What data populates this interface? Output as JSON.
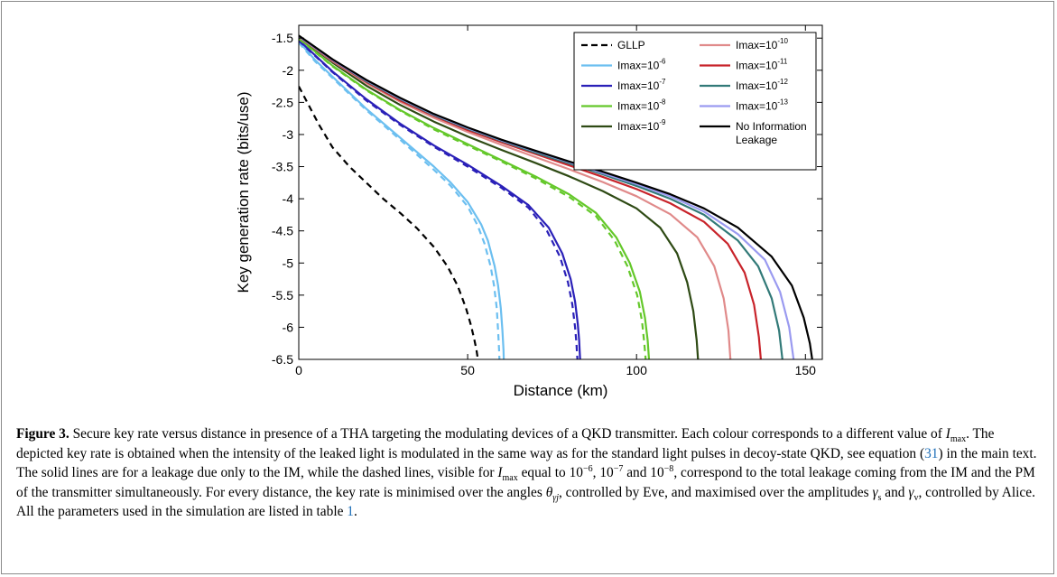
{
  "chart_data": {
    "type": "line",
    "xlabel": "Distance (km)",
    "ylabel": "Key generation rate (bits/use)",
    "xlim": [
      0,
      155
    ],
    "ylim": [
      -6.5,
      -1.3
    ],
    "xticks": [
      0,
      50,
      100,
      150
    ],
    "yticks": [
      -1.5,
      -2,
      -2.5,
      -3,
      -3.5,
      -4,
      -4.5,
      -5,
      -5.5,
      -6,
      -6.5
    ],
    "grid": false,
    "legend_position": "top-right",
    "legend_columns": 2,
    "series": [
      {
        "name": "GLLP",
        "legend_base": "GLLP",
        "legend_exp": "",
        "color": "#000000",
        "dash": true,
        "x": [
          0,
          3,
          6,
          10,
          15,
          20,
          25,
          30,
          35,
          40,
          44,
          47,
          49.5,
          51,
          52,
          52.6,
          52.9,
          53,
          53
        ],
        "y": [
          -2.25,
          -2.55,
          -2.85,
          -3.2,
          -3.5,
          -3.75,
          -4.0,
          -4.22,
          -4.46,
          -4.75,
          -5.05,
          -5.35,
          -5.7,
          -5.97,
          -6.2,
          -6.35,
          -6.45,
          -6.5,
          -6.5
        ]
      },
      {
        "name": "Imax=10-6",
        "legend_base": "Imax=10",
        "legend_exp": "-6",
        "color": "#6cbff0",
        "dash": false,
        "x": [
          0,
          5,
          10,
          20,
          30,
          40,
          45,
          50,
          54,
          56,
          58,
          59,
          59.8,
          60.3,
          60.6,
          60.7
        ],
        "y": [
          -1.55,
          -1.85,
          -2.1,
          -2.6,
          -3.05,
          -3.5,
          -3.75,
          -4.05,
          -4.4,
          -4.65,
          -5.05,
          -5.35,
          -5.7,
          -6.05,
          -6.35,
          -6.5
        ]
      },
      {
        "name": "Imax=10-6 (IM+PM)",
        "color": "#6cbff0",
        "dash": true,
        "x": [
          0,
          5,
          10,
          20,
          30,
          40,
          45,
          50,
          53,
          55,
          56.8,
          57.8,
          58.6,
          59.0,
          59.3,
          59.4
        ],
        "y": [
          -1.57,
          -1.87,
          -2.12,
          -2.62,
          -3.08,
          -3.55,
          -3.8,
          -4.12,
          -4.42,
          -4.7,
          -5.05,
          -5.35,
          -5.7,
          -6.05,
          -6.35,
          -6.5
        ]
      },
      {
        "name": "Imax=10-7",
        "legend_base": "Imax=10",
        "legend_exp": "-7",
        "color": "#2a20b8",
        "dash": false,
        "x": [
          0,
          10,
          20,
          30,
          40,
          50,
          60,
          68,
          74,
          78,
          80.5,
          81.8,
          82.6,
          83.0,
          83.2,
          83.3
        ],
        "y": [
          -1.53,
          -2.02,
          -2.45,
          -2.83,
          -3.17,
          -3.47,
          -3.8,
          -4.1,
          -4.45,
          -4.85,
          -5.25,
          -5.6,
          -5.95,
          -6.2,
          -6.4,
          -6.5
        ]
      },
      {
        "name": "Imax=10-7 (IM+PM)",
        "color": "#2a20b8",
        "dash": true,
        "x": [
          0,
          10,
          20,
          30,
          40,
          50,
          60,
          68,
          73.5,
          77.3,
          79.7,
          81.0,
          81.8,
          82.2,
          82.4,
          82.5
        ],
        "y": [
          -1.54,
          -2.03,
          -2.47,
          -2.85,
          -3.19,
          -3.5,
          -3.83,
          -4.14,
          -4.5,
          -4.9,
          -5.3,
          -5.65,
          -6.0,
          -6.25,
          -6.42,
          -6.5
        ]
      },
      {
        "name": "Imax=10-8",
        "legend_base": "Imax=10",
        "legend_exp": "-8",
        "color": "#64c82a",
        "dash": false,
        "x": [
          0,
          10,
          20,
          30,
          40,
          50,
          60,
          70,
          80,
          88,
          94,
          98,
          101,
          102.5,
          103.3,
          103.7
        ],
        "y": [
          -1.5,
          -1.93,
          -2.3,
          -2.62,
          -2.9,
          -3.15,
          -3.4,
          -3.65,
          -3.93,
          -4.22,
          -4.6,
          -5.0,
          -5.45,
          -5.85,
          -6.2,
          -6.5
        ]
      },
      {
        "name": "Imax=10-8 (IM+PM)",
        "color": "#64c82a",
        "dash": true,
        "x": [
          0,
          10,
          20,
          30,
          40,
          50,
          60,
          70,
          80,
          88,
          93.5,
          97.3,
          100.2,
          101.6,
          102.3,
          102.7
        ],
        "y": [
          -1.51,
          -1.94,
          -2.31,
          -2.63,
          -2.92,
          -3.17,
          -3.42,
          -3.68,
          -3.97,
          -4.27,
          -4.65,
          -5.05,
          -5.5,
          -5.9,
          -6.25,
          -6.5
        ]
      },
      {
        "name": "Imax=10-9",
        "legend_base": "Imax=10",
        "legend_exp": "-9",
        "color": "#2e4a14",
        "dash": false,
        "x": [
          0,
          10,
          20,
          30,
          40,
          50,
          60,
          70,
          80,
          90,
          100,
          107,
          112,
          115,
          116.8,
          117.8,
          118.2
        ],
        "y": [
          -1.48,
          -1.88,
          -2.24,
          -2.54,
          -2.8,
          -3.03,
          -3.24,
          -3.44,
          -3.65,
          -3.88,
          -4.15,
          -4.45,
          -4.85,
          -5.3,
          -5.75,
          -6.2,
          -6.5
        ]
      },
      {
        "name": "Imax=10-10",
        "legend_base": "Imax=10",
        "legend_exp": "-10",
        "color": "#e08a8a",
        "dash": false,
        "x": [
          0,
          10,
          20,
          30,
          40,
          50,
          60,
          70,
          80,
          90,
          100,
          110,
          118,
          123,
          125.8,
          127.2,
          127.8
        ],
        "y": [
          -1.48,
          -1.86,
          -2.2,
          -2.49,
          -2.74,
          -2.96,
          -3.16,
          -3.35,
          -3.54,
          -3.74,
          -3.96,
          -4.24,
          -4.6,
          -5.05,
          -5.55,
          -6.05,
          -6.5
        ]
      },
      {
        "name": "Imax=10-11",
        "legend_base": "Imax=10",
        "legend_exp": "-11",
        "color": "#c8232a",
        "dash": false,
        "x": [
          0,
          10,
          20,
          30,
          40,
          50,
          60,
          70,
          80,
          90,
          100,
          110,
          120,
          127,
          132,
          134.8,
          136.2,
          136.8
        ],
        "y": [
          -1.47,
          -1.85,
          -2.18,
          -2.47,
          -2.71,
          -2.93,
          -3.12,
          -3.3,
          -3.48,
          -3.66,
          -3.85,
          -4.07,
          -4.36,
          -4.7,
          -5.15,
          -5.65,
          -6.15,
          -6.5
        ]
      },
      {
        "name": "Imax=10-12",
        "legend_base": "Imax=10",
        "legend_exp": "-12",
        "color": "#327a78",
        "dash": false,
        "x": [
          0,
          10,
          20,
          30,
          40,
          50,
          60,
          70,
          80,
          90,
          100,
          110,
          120,
          130,
          136,
          140,
          142.2,
          143.2
        ],
        "y": [
          -1.47,
          -1.84,
          -2.17,
          -2.45,
          -2.7,
          -2.91,
          -3.1,
          -3.28,
          -3.45,
          -3.62,
          -3.8,
          -4.0,
          -4.25,
          -4.65,
          -5.05,
          -5.55,
          -6.05,
          -6.5
        ]
      },
      {
        "name": "Imax=10-13",
        "legend_base": "Imax=10",
        "legend_exp": "-13",
        "color": "#9a9af0",
        "dash": false,
        "x": [
          0,
          10,
          20,
          30,
          40,
          50,
          60,
          70,
          80,
          90,
          100,
          110,
          120,
          130,
          138,
          142.5,
          145.2,
          146.5
        ],
        "y": [
          -1.47,
          -1.84,
          -2.16,
          -2.44,
          -2.69,
          -2.9,
          -3.09,
          -3.26,
          -3.43,
          -3.6,
          -3.77,
          -3.96,
          -4.2,
          -4.55,
          -4.95,
          -5.45,
          -6.0,
          -6.5
        ]
      },
      {
        "name": "No Information Leakage",
        "legend_base": "No Information",
        "legend_line2": "Leakage",
        "legend_exp": "",
        "color": "#000000",
        "dash": false,
        "x": [
          0,
          10,
          20,
          30,
          40,
          50,
          60,
          70,
          80,
          90,
          100,
          110,
          120,
          130,
          140,
          146,
          149.5,
          151.3,
          152
        ],
        "y": [
          -1.46,
          -1.83,
          -2.15,
          -2.43,
          -2.68,
          -2.89,
          -3.08,
          -3.25,
          -3.42,
          -3.58,
          -3.75,
          -3.93,
          -4.15,
          -4.45,
          -4.9,
          -5.35,
          -5.85,
          -6.25,
          -6.5
        ]
      }
    ]
  },
  "caption": {
    "label": "Figure 3.",
    "p1": " Secure key rate versus distance in presence of a THA targeting the modulating devices of a QKD transmitter. Each colour corresponds to a different value of ",
    "imax_i": "I",
    "imax_sub": "max",
    "p2": ". The depicted key rate is obtained when the intensity of the leaked light is modulated in the same way as for the standard light pulses in decoy-state QKD, see equation (",
    "eq_ref": "31",
    "p3": ") in the main text. The solid lines are for a leakage due only to the IM, while the dashed lines, visible for ",
    "p4": " equal to ",
    "v1": "10",
    "v1_exp": "−6",
    "v2": "10",
    "v2_exp": "−7",
    "and": " and ",
    "v3": "10",
    "v3_exp": "−8",
    "p5": ", correspond to the total leakage coming from the IM and the PM of the transmitter simultaneously. For every distance, the key rate is minimised over the angles ",
    "theta": "θ",
    "theta_sub": "γj",
    "p6": ", controlled by Eve, and maximised over the amplitudes ",
    "gs": "γ",
    "gs_sub": "s",
    "p7": " and ",
    "gv": "γ",
    "gv_sub": "v",
    "p8": ", controlled by Alice. All the parameters used in the simulation are listed in table ",
    "table_ref": "1",
    "p9": "."
  }
}
